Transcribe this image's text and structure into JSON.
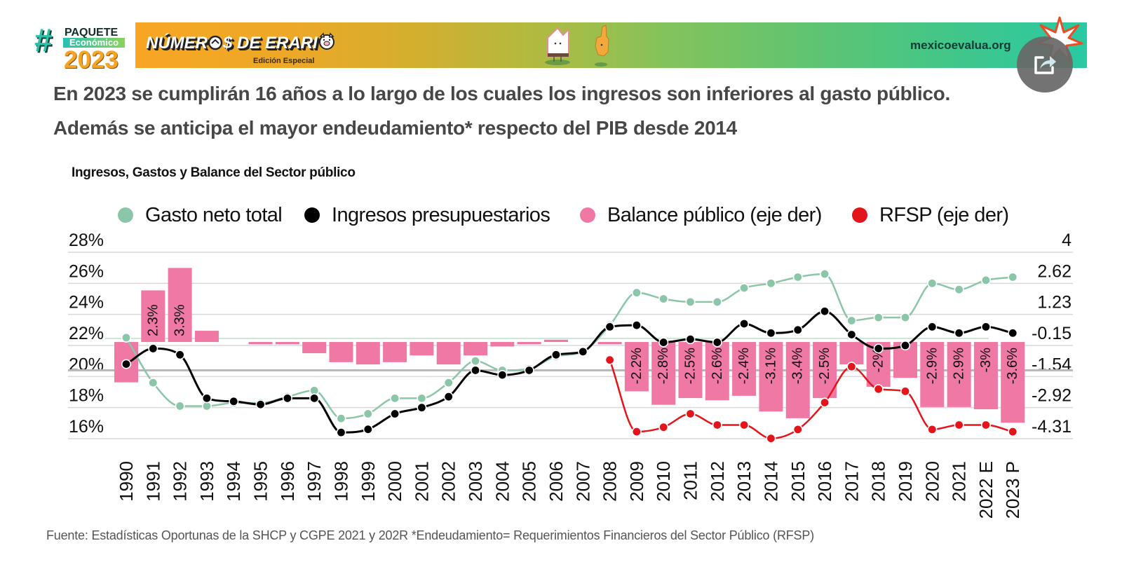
{
  "header": {
    "logo": {
      "hash": "#",
      "paquete": "PAQUETE",
      "economico": "Económico",
      "year": "2023"
    },
    "banner": {
      "brand_part1": "NÚMER",
      "brand_part2": "$ DE ERARI",
      "edition": "Edición Especial",
      "site": "mexicoevalua.org",
      "icons": [
        "coin-icon",
        "pig-icon",
        "mascot-house-icon",
        "mascot-hand-icon",
        "starburst-icon"
      ]
    },
    "share_button": {
      "icon": "share-icon"
    }
  },
  "title": {
    "line1": "En 2023 se cumplirán 16 años a lo largo de los cuales los ingresos son inferiores al gasto público.",
    "line2": "Además se anticipa el mayor endeudamiento* respecto del PIB desde 2014"
  },
  "chart_data": {
    "type": "line",
    "title": "Ingresos, Gastos y Balance del Sector público",
    "xlabel": "",
    "ylabel": "",
    "legend": "top",
    "grid": true,
    "categories": [
      "1990",
      "1991",
      "1992",
      "1993",
      "1994",
      "1995",
      "1996",
      "1997",
      "1998",
      "1999",
      "2000",
      "2001",
      "2002",
      "2003",
      "2004",
      "2005",
      "2006",
      "2007",
      "2008",
      "2009",
      "2010",
      "2011",
      "2012",
      "2013",
      "2014",
      "2015",
      "2016",
      "2017",
      "2018",
      "2019",
      "2020",
      "2021",
      "2022 E",
      "2023 P"
    ],
    "left_axis": {
      "ylim": [
        16,
        28
      ],
      "ticks": [
        28,
        26,
        24,
        22,
        20,
        18,
        16
      ],
      "tick_labels": [
        "28%",
        "26%",
        "24%",
        "22%",
        "20%",
        "18%",
        "16%"
      ]
    },
    "right_axis": {
      "ylim": [
        -4.31,
        4
      ],
      "ticks": [
        4,
        2.62,
        1.23,
        -0.15,
        -1.54,
        -2.92,
        -4.31
      ],
      "tick_labels": [
        "4",
        "2.62",
        "1.23",
        "-0.15",
        "-1.54",
        "-2.92",
        "-4.31"
      ]
    },
    "series": [
      {
        "name": "Gasto neto total",
        "type": "line",
        "axis": "left",
        "color": "#8CC6A8",
        "values": [
          22.5,
          19.6,
          18.1,
          18.1,
          18.3,
          18.3,
          18.7,
          19.1,
          17.3,
          17.6,
          18.6,
          18.6,
          19.6,
          21.0,
          20.4,
          20.5,
          21.3,
          21.6,
          23.3,
          25.4,
          25.0,
          24.8,
          24.8,
          25.7,
          26.0,
          26.4,
          26.6,
          23.6,
          23.8,
          23.8,
          26.0,
          25.6,
          26.2,
          26.4
        ]
      },
      {
        "name": "Ingresos presupuestarios",
        "type": "line",
        "axis": "left",
        "color": "#000000",
        "values": [
          20.8,
          21.8,
          21.4,
          18.6,
          18.4,
          18.2,
          18.6,
          18.6,
          16.4,
          16.6,
          17.6,
          18.0,
          18.7,
          20.4,
          20.1,
          20.4,
          21.4,
          21.6,
          23.2,
          23.3,
          22.2,
          22.4,
          22.2,
          23.4,
          22.8,
          23.0,
          24.2,
          22.7,
          21.8,
          22.0,
          23.2,
          22.8,
          23.2,
          22.8
        ]
      },
      {
        "name": "Balance público (eje der)",
        "type": "bar",
        "axis": "right",
        "color": "#EF78A5",
        "values": [
          -1.8,
          2.3,
          3.3,
          0.5,
          0,
          -0.1,
          -0.1,
          -0.5,
          -0.9,
          -1.0,
          -0.9,
          -0.6,
          -1.0,
          -0.6,
          -0.2,
          -0.1,
          0.1,
          0,
          -0.1,
          -2.2,
          -2.8,
          -2.5,
          -2.6,
          -2.4,
          -3.1,
          -3.4,
          -2.5,
          -1.0,
          -2.0,
          -1.6,
          -2.9,
          -2.9,
          -3.0,
          -3.6
        ],
        "data_labels": [
          null,
          "2.3%",
          "3.3%",
          null,
          null,
          null,
          null,
          null,
          null,
          null,
          null,
          null,
          null,
          null,
          null,
          null,
          null,
          null,
          null,
          "-2.2%",
          "-2.8%",
          "-2.5%",
          "-2.6%",
          "-2.4%",
          "-3.1%",
          "-3.4%",
          "-2.5%",
          null,
          "-2%",
          null,
          "-2.9%",
          "-2.9%",
          "-3%",
          "-3.6%"
        ]
      },
      {
        "name": "RFSP (eje der)",
        "type": "line",
        "axis": "right",
        "color": "#E4141B",
        "values": [
          null,
          null,
          null,
          null,
          null,
          null,
          null,
          null,
          null,
          null,
          null,
          null,
          null,
          null,
          null,
          null,
          null,
          null,
          -0.8,
          -4.0,
          -3.8,
          -3.2,
          -3.7,
          -3.7,
          -4.3,
          -3.9,
          -2.7,
          -1.1,
          -2.1,
          -2.2,
          -3.9,
          -3.7,
          -3.7,
          -4.0
        ]
      }
    ],
    "reference_lines": [
      {
        "axis": "left",
        "value": 22.45,
        "color": "#CFE5D8"
      },
      {
        "axis": "left",
        "value": 20.4,
        "color": "#B9B9B9"
      }
    ]
  },
  "footer": {
    "source": "Fuente: Estadísticas Oportunas de la SHCP y CGPE 2021 y 202R *Endeudamiento= Requerimientos Financieros del Sector Público (RFSP)"
  }
}
